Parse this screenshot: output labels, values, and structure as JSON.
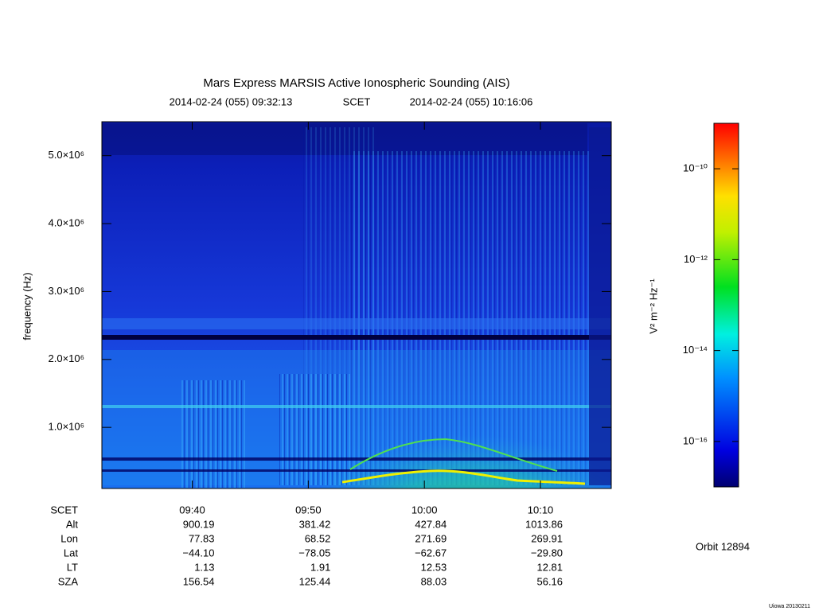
{
  "chart_data": {
    "type": "spectrogram",
    "title": "Mars Express MARSIS Active Ionospheric Sounding (AIS)",
    "subtitle": {
      "start_time": "2014-02-24 (055) 09:32:13",
      "time_label": "SCET",
      "end_time": "2014-02-24 (055) 10:16:06"
    },
    "ylabel": "frequency (Hz)",
    "xlim": [
      34333,
      36966
    ],
    "xticks": [
      {
        "value": 34800,
        "label": "09:40"
      },
      {
        "value": 35400,
        "label": "09:50"
      },
      {
        "value": 36000,
        "label": "10:00"
      },
      {
        "value": 36600,
        "label": "10:10"
      }
    ],
    "ylim": [
      100000,
      5500000
    ],
    "yticks": [
      {
        "value": 1000000,
        "label": "1.0×10⁶"
      },
      {
        "value": 2000000,
        "label": "2.0×10⁶"
      },
      {
        "value": 3000000,
        "label": "3.0×10⁶"
      },
      {
        "value": 4000000,
        "label": "4.0×10⁶"
      },
      {
        "value": 5000000,
        "label": "5.0×10⁶"
      }
    ],
    "colorbar": {
      "label": "V² m⁻² Hz⁻¹",
      "log_scale": true,
      "clim": [
        1e-17,
        1e-09
      ],
      "ticks": [
        {
          "value": 1e-10,
          "label": "10⁻¹⁰"
        },
        {
          "value": 1e-12,
          "label": "10⁻¹²"
        },
        {
          "value": 1e-14,
          "label": "10⁻¹⁴"
        },
        {
          "value": 1e-16,
          "label": "10⁻¹⁶"
        }
      ]
    },
    "ephemeris": {
      "time_label": "SCET",
      "rows": [
        {
          "label": "Alt",
          "values": [
            "900.19",
            "381.42",
            "427.84",
            "1013.86"
          ]
        },
        {
          "label": "Lon",
          "values": [
            "77.83",
            "68.52",
            "271.69",
            "269.91"
          ]
        },
        {
          "label": "Lat",
          "values": [
            "−44.10",
            "−78.05",
            "−62.67",
            "−29.80"
          ]
        },
        {
          "label": "LT",
          "values": [
            "1.13",
            "1.91",
            "12.53",
            "12.81"
          ]
        },
        {
          "label": "SZA",
          "values": [
            "156.54",
            "125.44",
            "88.03",
            "56.16"
          ]
        }
      ]
    },
    "orbit": "Orbit 12894",
    "footer": "Uiowa 20130211"
  }
}
